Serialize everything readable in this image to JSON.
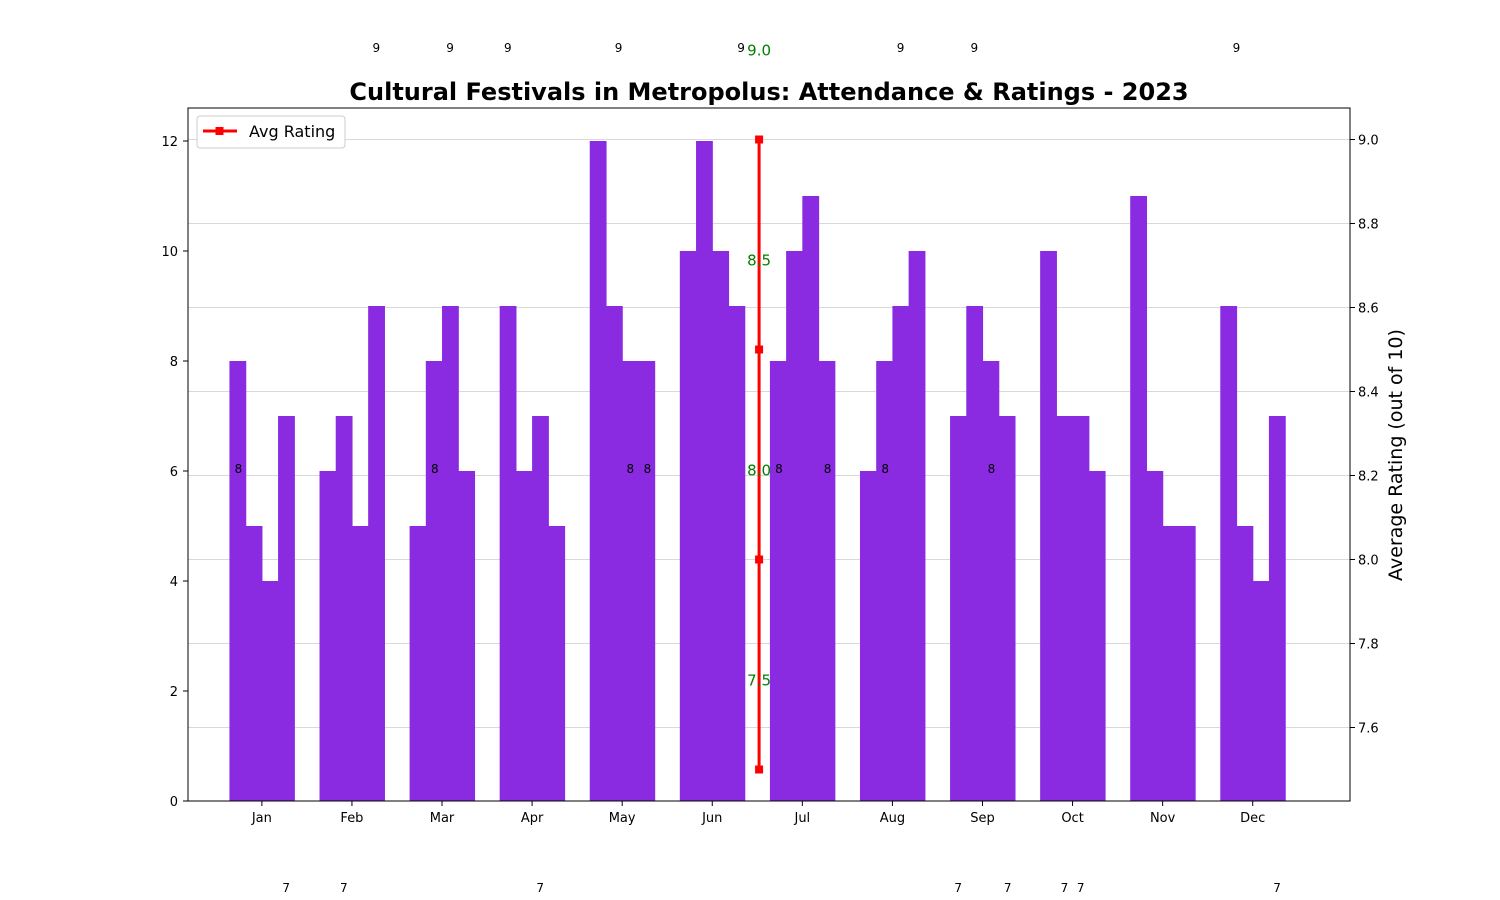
{
  "chart_data": {
    "type": "bar",
    "title": "Cultural Festivals in Metropolus: Attendance & Ratings - 2023",
    "xlabel": "",
    "ylabel": "",
    "y2label": "Average Rating (out of 10)",
    "categories": [
      "Jan",
      "Feb",
      "Mar",
      "Apr",
      "May",
      "Jun",
      "Jul",
      "Aug",
      "Sep",
      "Oct",
      "Nov",
      "Dec"
    ],
    "ylim": [
      0,
      12.6
    ],
    "y2lim": [
      7.425,
      9.075
    ],
    "yticks": [
      0,
      2,
      4,
      6,
      8,
      10,
      12
    ],
    "y2ticks": [
      "7.6",
      "7.8",
      "8.0",
      "8.2",
      "8.4",
      "8.6",
      "8.8",
      "9.0"
    ],
    "bar_color": "#8a2be2",
    "bars": [
      [
        8,
        5,
        4,
        7
      ],
      [
        6,
        7,
        5,
        9
      ],
      [
        5,
        8,
        9,
        6
      ],
      [
        9,
        6,
        7,
        5
      ],
      [
        12,
        9,
        8,
        8
      ],
      [
        10,
        12,
        10,
        9
      ],
      [
        8,
        10,
        11,
        8
      ],
      [
        6,
        8,
        9,
        10
      ],
      [
        7,
        9,
        8,
        7
      ],
      [
        10,
        7,
        7,
        6
      ],
      [
        11,
        6,
        5,
        5
      ],
      [
        9,
        5,
        4,
        7
      ]
    ],
    "rating_series": {
      "name": "Avg Rating",
      "color": "#ff0000",
      "x_position": 5.52,
      "values": [
        7.5,
        8.0,
        8.5,
        9.0
      ],
      "labels": [
        "7.5",
        "8.0",
        "8.5",
        "9.0"
      ],
      "label_color": "#008000"
    },
    "legend": {
      "entries": [
        "Avg Rating"
      ],
      "placement": "top-left"
    },
    "grid": {
      "y2": true
    },
    "stray_labels": {
      "top": [
        {
          "x": 1.27,
          "text": "9"
        },
        {
          "x": 2.09,
          "text": "9"
        },
        {
          "x": 2.73,
          "text": "9"
        },
        {
          "x": 3.96,
          "text": "9"
        },
        {
          "x": 5.32,
          "text": "9"
        },
        {
          "x": 7.09,
          "text": "9"
        },
        {
          "x": 7.91,
          "text": "9"
        },
        {
          "x": 10.82,
          "text": "9"
        }
      ],
      "middle": [
        {
          "x": -0.26,
          "text": "8"
        },
        {
          "x": 1.92,
          "text": "8"
        },
        {
          "x": 4.09,
          "text": "8"
        },
        {
          "x": 4.28,
          "text": "8"
        },
        {
          "x": 5.74,
          "text": "8"
        },
        {
          "x": 6.28,
          "text": "8"
        },
        {
          "x": 6.92,
          "text": "8"
        },
        {
          "x": 8.1,
          "text": "8"
        }
      ],
      "bottom": [
        {
          "x": 0.27,
          "text": "7"
        },
        {
          "x": 0.91,
          "text": "7"
        },
        {
          "x": 3.09,
          "text": "7"
        },
        {
          "x": 7.73,
          "text": "7"
        },
        {
          "x": 8.28,
          "text": "7"
        },
        {
          "x": 8.91,
          "text": "7"
        },
        {
          "x": 9.09,
          "text": "7"
        },
        {
          "x": 11.27,
          "text": "7"
        }
      ]
    }
  }
}
